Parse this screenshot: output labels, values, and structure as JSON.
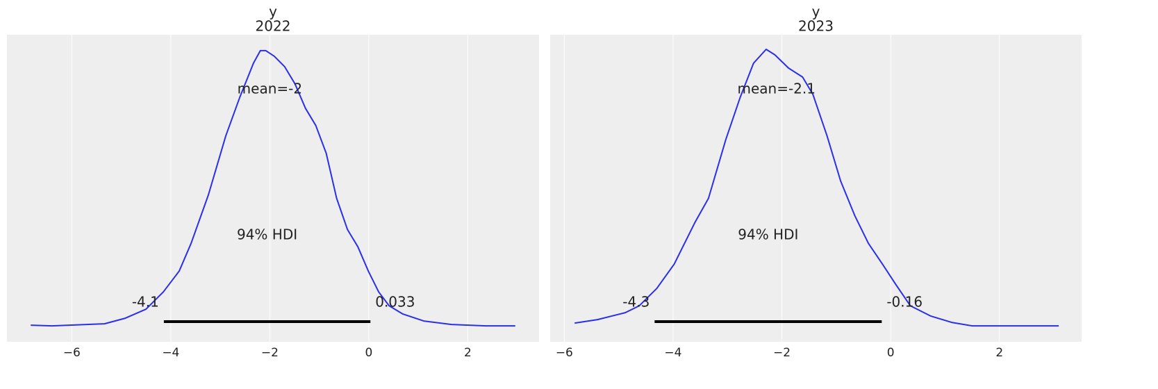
{
  "chart_data": [
    {
      "type": "density",
      "title": "y",
      "subtitle": "2022",
      "color": "#2a2eec",
      "grid": true,
      "xlim": [
        -7.31,
        3.44
      ],
      "ylim": [
        -0.023,
        0.42
      ],
      "xticks": [
        {
          "value": -6,
          "label": "−6"
        },
        {
          "value": -4,
          "label": "−4"
        },
        {
          "value": -2,
          "label": "−2"
        },
        0,
        2
      ],
      "x": [
        -6.83,
        -6.4,
        -5.34,
        -4.92,
        -4.5,
        -4.15,
        -3.83,
        -3.59,
        -3.24,
        -2.89,
        -2.61,
        -2.33,
        -2.19,
        -2.08,
        -1.91,
        -1.7,
        -1.49,
        -1.28,
        -1.07,
        -0.86,
        -0.65,
        -0.43,
        -0.22,
        -0.01,
        0.2,
        0.41,
        0.69,
        1.11,
        1.67,
        2.37,
        2.96
      ],
      "values": [
        0.001,
        0.0,
        0.003,
        0.011,
        0.024,
        0.049,
        0.079,
        0.119,
        0.189,
        0.274,
        0.329,
        0.379,
        0.397,
        0.397,
        0.389,
        0.374,
        0.349,
        0.314,
        0.289,
        0.249,
        0.184,
        0.139,
        0.114,
        0.079,
        0.049,
        0.029,
        0.017,
        0.007,
        0.002,
        0.0,
        0.0
      ],
      "mean": {
        "value": -2,
        "label": "mean=-2"
      },
      "hdi": [
        -4.14,
        0.033
      ],
      "hdi_labels": [
        "-4.1",
        "0.033"
      ],
      "hdi_text": "94% HDI"
    },
    {
      "type": "density",
      "title": "y",
      "subtitle": "2023",
      "color": "#2a2eec",
      "grid": true,
      "xlim": [
        -6.26,
        3.51
      ],
      "ylim": [
        -0.023,
        0.42
      ],
      "xticks": [
        {
          "value": -6,
          "label": "−6"
        },
        {
          "value": -4,
          "label": "−4"
        },
        {
          "value": -2,
          "label": "−2"
        },
        0,
        2
      ],
      "x": [
        -5.81,
        -5.39,
        -4.88,
        -4.62,
        -4.3,
        -3.98,
        -3.6,
        -3.35,
        -3.03,
        -2.77,
        -2.52,
        -2.29,
        -2.13,
        -1.88,
        -1.62,
        -1.43,
        -1.17,
        -0.92,
        -0.66,
        -0.41,
        -0.15,
        0.1,
        0.36,
        0.74,
        1.12,
        1.5,
        2.14,
        3.09
      ],
      "values": [
        0.004,
        0.009,
        0.019,
        0.029,
        0.054,
        0.089,
        0.149,
        0.184,
        0.269,
        0.329,
        0.379,
        0.399,
        0.391,
        0.372,
        0.359,
        0.334,
        0.274,
        0.209,
        0.159,
        0.119,
        0.089,
        0.059,
        0.029,
        0.014,
        0.005,
        0.0,
        0.0,
        0.0
      ],
      "mean": {
        "value": -2.1,
        "label": "mean=-2.1"
      },
      "hdi": [
        -4.34,
        -0.164
      ],
      "hdi_labels": [
        "-4.3",
        "-0.16"
      ],
      "hdi_text": "94% HDI"
    }
  ]
}
